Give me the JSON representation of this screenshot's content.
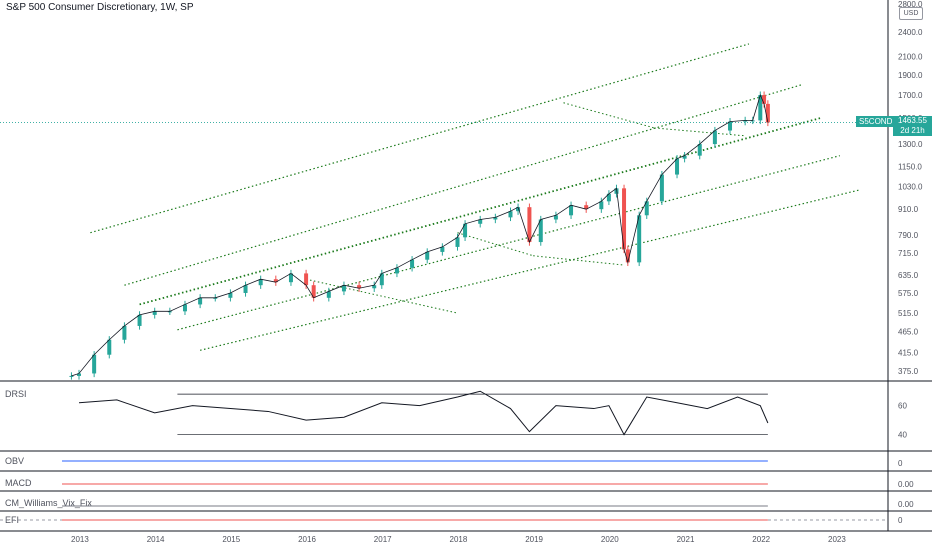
{
  "header": {
    "title": "S&P 500 Consumer Discretionary, 1W, SP",
    "currency": "USD"
  },
  "price_tag": {
    "symbol": "S5COND",
    "value": "1463.55",
    "countdown": "2d 21h"
  },
  "panes": {
    "drsi": "DRSI",
    "obv": "OBV",
    "macd": "MACD",
    "vix": "CM_Williams_Vix_Fix",
    "efi": "EFI"
  },
  "colors": {
    "up": "#26a69a",
    "down": "#ef5350",
    "channel": "#1b7a1b",
    "price_line": "#26a69a",
    "axis": "#131722"
  },
  "chart_data": [
    {
      "type": "line",
      "title": "S&P 500 Consumer Discretionary, 1W, SP",
      "x_ticks": [
        "2013",
        "2014",
        "2015",
        "2016",
        "2017",
        "2018",
        "2019",
        "2020",
        "2021",
        "2022",
        "2023"
      ],
      "y_ticks": [
        2800,
        2400,
        2100,
        1900,
        1700,
        1500,
        1300,
        1150,
        1030,
        910,
        790,
        715,
        635,
        575,
        515,
        465,
        415,
        375
      ],
      "y_scale": "log",
      "ylim": [
        350,
        2800
      ],
      "last_value": 1463.55,
      "series": [
        {
          "x": [
            2012.9,
            2013.0,
            2013.2,
            2013.4,
            2013.6,
            2013.8,
            2014.0,
            2014.2,
            2014.4,
            2014.6,
            2014.8,
            2015.0,
            2015.2,
            2015.4,
            2015.6,
            2015.8,
            2016.0,
            2016.1,
            2016.3,
            2016.5,
            2016.7,
            2016.9,
            2017.0,
            2017.2,
            2017.4,
            2017.6,
            2017.8,
            2018.0,
            2018.1,
            2018.3,
            2018.5,
            2018.7,
            2018.8,
            2018.95,
            2019.1,
            2019.3,
            2019.5,
            2019.7,
            2019.9,
            2020.0,
            2020.1,
            2020.2,
            2020.25,
            2020.4,
            2020.5,
            2020.7,
            2020.9,
            2021.0,
            2021.2,
            2021.4,
            2021.6,
            2021.8,
            2021.9,
            2022.0,
            2022.05,
            2022.1
          ],
          "values": [
            365,
            370,
            410,
            445,
            480,
            510,
            520,
            520,
            540,
            560,
            560,
            575,
            600,
            620,
            610,
            640,
            600,
            560,
            580,
            600,
            590,
            600,
            640,
            660,
            690,
            720,
            740,
            780,
            840,
            860,
            870,
            900,
            920,
            760,
            860,
            880,
            930,
            910,
            950,
            990,
            1020,
            730,
            680,
            880,
            950,
            1100,
            1200,
            1220,
            1300,
            1400,
            1470,
            1480,
            1480,
            1700,
            1620,
            1463.55
          ]
        }
      ]
    },
    {
      "type": "line",
      "title": "DRSI",
      "y_ticks": [
        60,
        40
      ],
      "series": [
        {
          "x": [
            2013.0,
            2013.5,
            2014.0,
            2014.5,
            2015.0,
            2015.5,
            2016.0,
            2016.5,
            2017.0,
            2017.5,
            2018.0,
            2018.3,
            2018.7,
            2018.95,
            2019.3,
            2019.8,
            2020.0,
            2020.2,
            2020.5,
            2020.9,
            2021.3,
            2021.7,
            2022.0,
            2022.1
          ],
          "values": [
            62,
            64,
            55,
            60,
            58,
            56,
            50,
            52,
            62,
            60,
            66,
            70,
            58,
            42,
            60,
            58,
            60,
            40,
            66,
            62,
            58,
            66,
            60,
            48
          ]
        }
      ]
    },
    {
      "type": "line",
      "title": "OBV",
      "y_ticks": [
        0
      ]
    },
    {
      "type": "line",
      "title": "MACD",
      "y_ticks": [
        0.0
      ]
    },
    {
      "type": "bar",
      "title": "CM_Williams_Vix_Fix",
      "y_ticks": [
        0.0
      ]
    },
    {
      "type": "line",
      "title": "EFI",
      "y_ticks": [
        0
      ]
    }
  ]
}
